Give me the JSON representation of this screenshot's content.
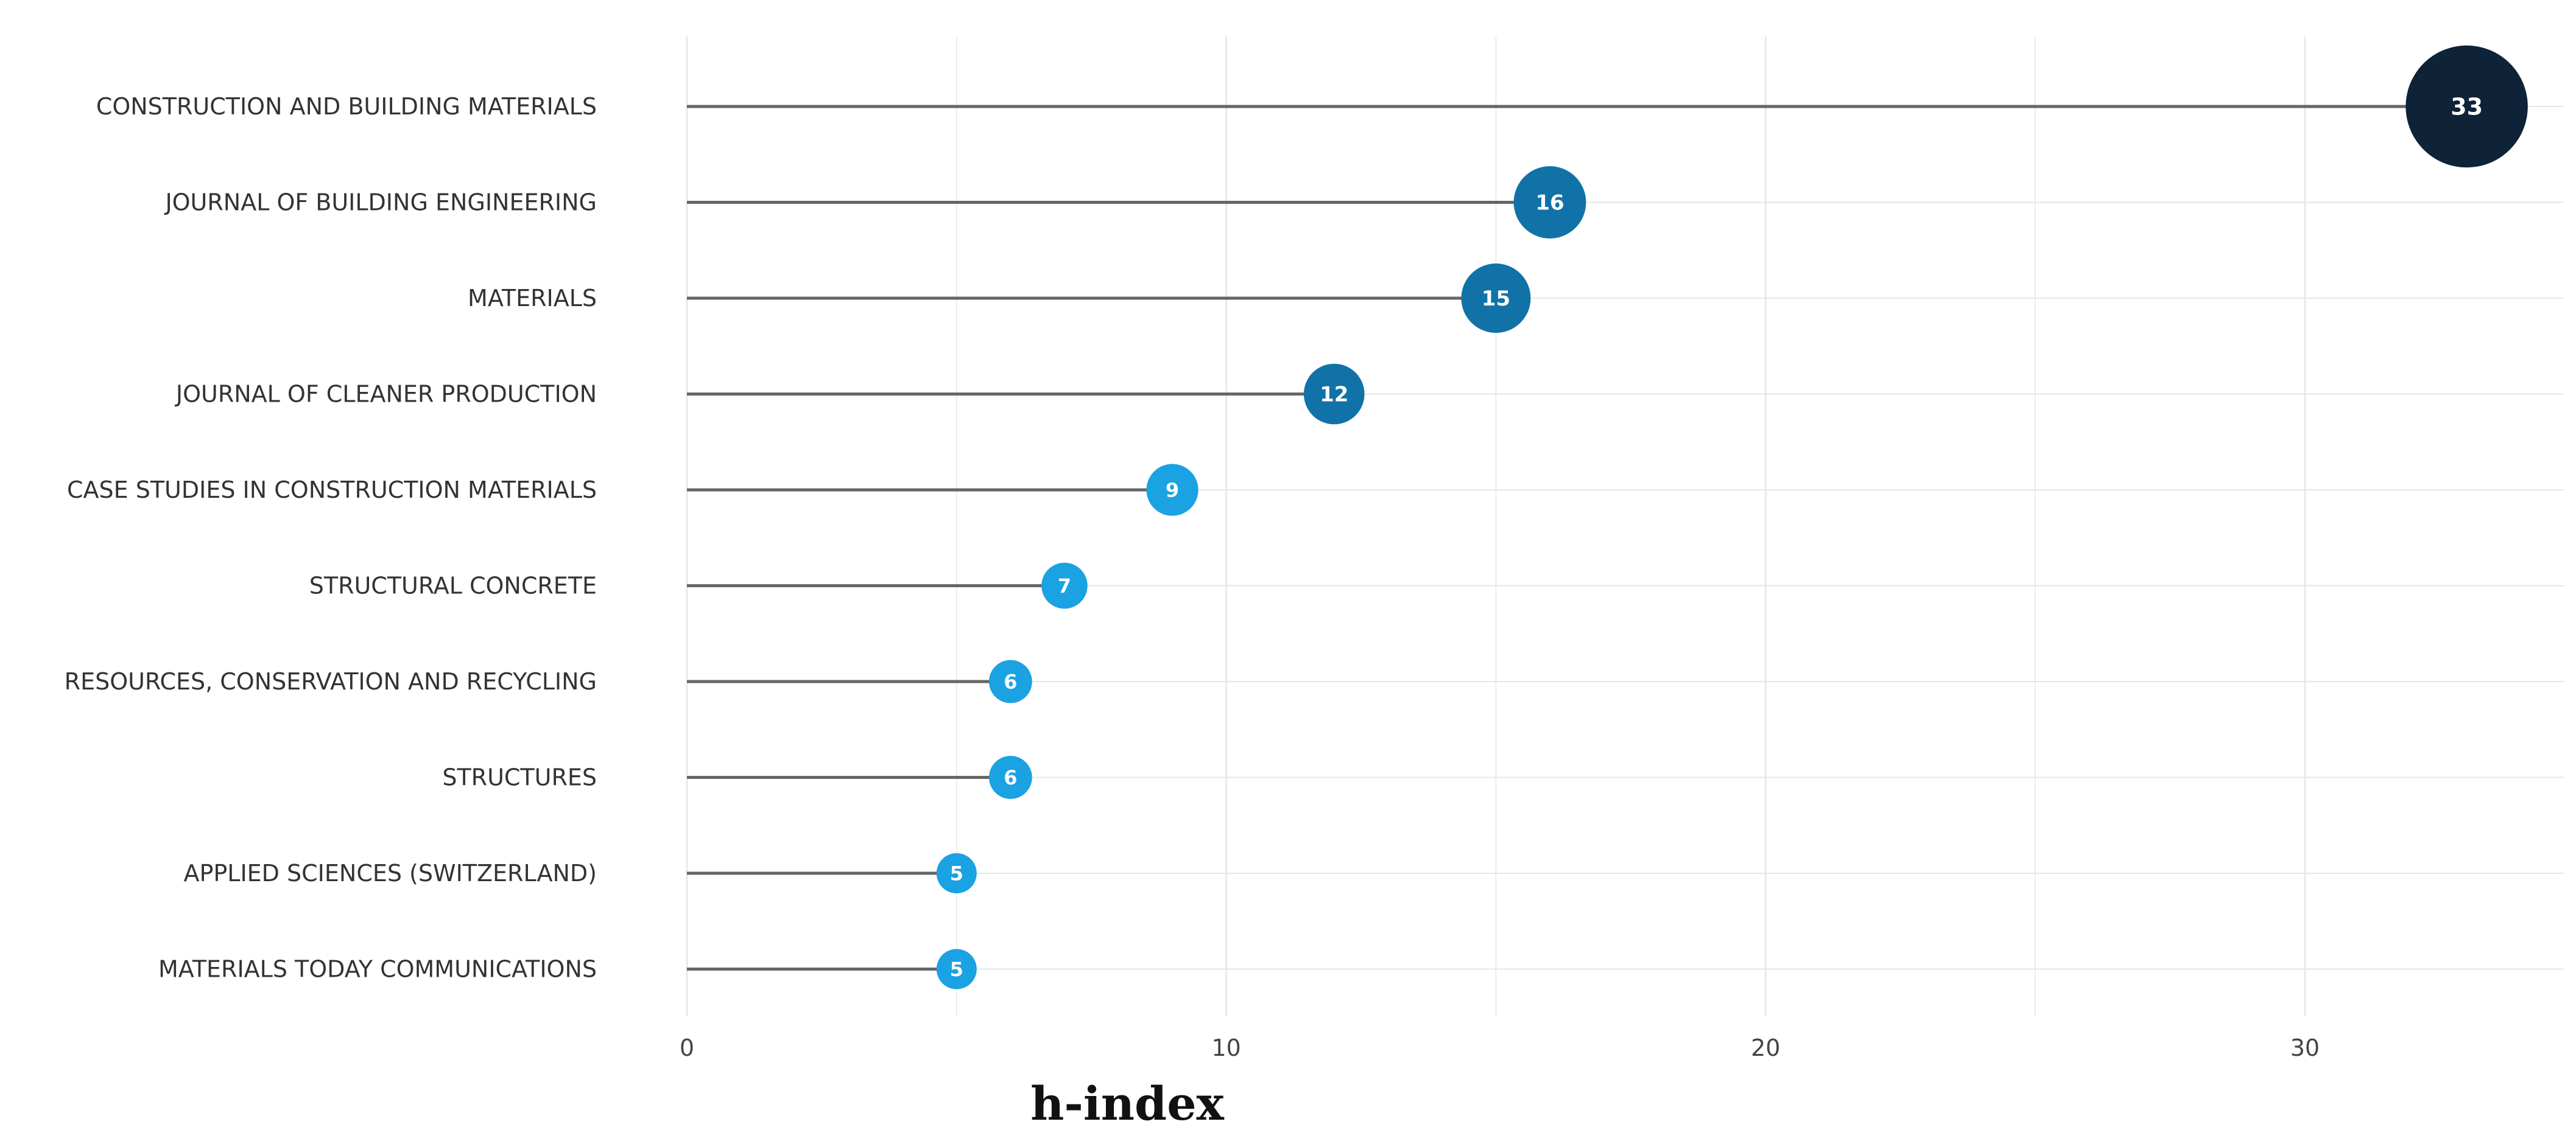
{
  "chart_data": {
    "type": "lollipop",
    "title": "",
    "xlabel": "h-index",
    "ylabel": "",
    "xlim": [
      0,
      34.8
    ],
    "xticks": [
      0,
      10,
      20,
      30
    ],
    "grid": true,
    "legend": "none",
    "categories": [
      "CONSTRUCTION AND BUILDING MATERIALS",
      "JOURNAL OF BUILDING ENGINEERING",
      "MATERIALS",
      "JOURNAL OF CLEANER PRODUCTION",
      "CASE STUDIES IN CONSTRUCTION MATERIALS",
      "STRUCTURAL CONCRETE",
      "RESOURCES, CONSERVATION AND RECYCLING",
      "STRUCTURES",
      "APPLIED SCIENCES (SWITZERLAND)",
      "MATERIALS TODAY COMMUNICATIONS"
    ],
    "values": [
      33,
      16,
      15,
      12,
      9,
      7,
      6,
      6,
      5,
      5
    ],
    "value_labels": [
      "33",
      "16",
      "15",
      "12",
      "9",
      "7",
      "6",
      "6",
      "5",
      "5"
    ],
    "colors": {
      "stem": "#666666",
      "grid": "#e6e6e6",
      "dark": "#0e2238",
      "mid": "#1172a8",
      "light": "#1aa2e2"
    }
  }
}
